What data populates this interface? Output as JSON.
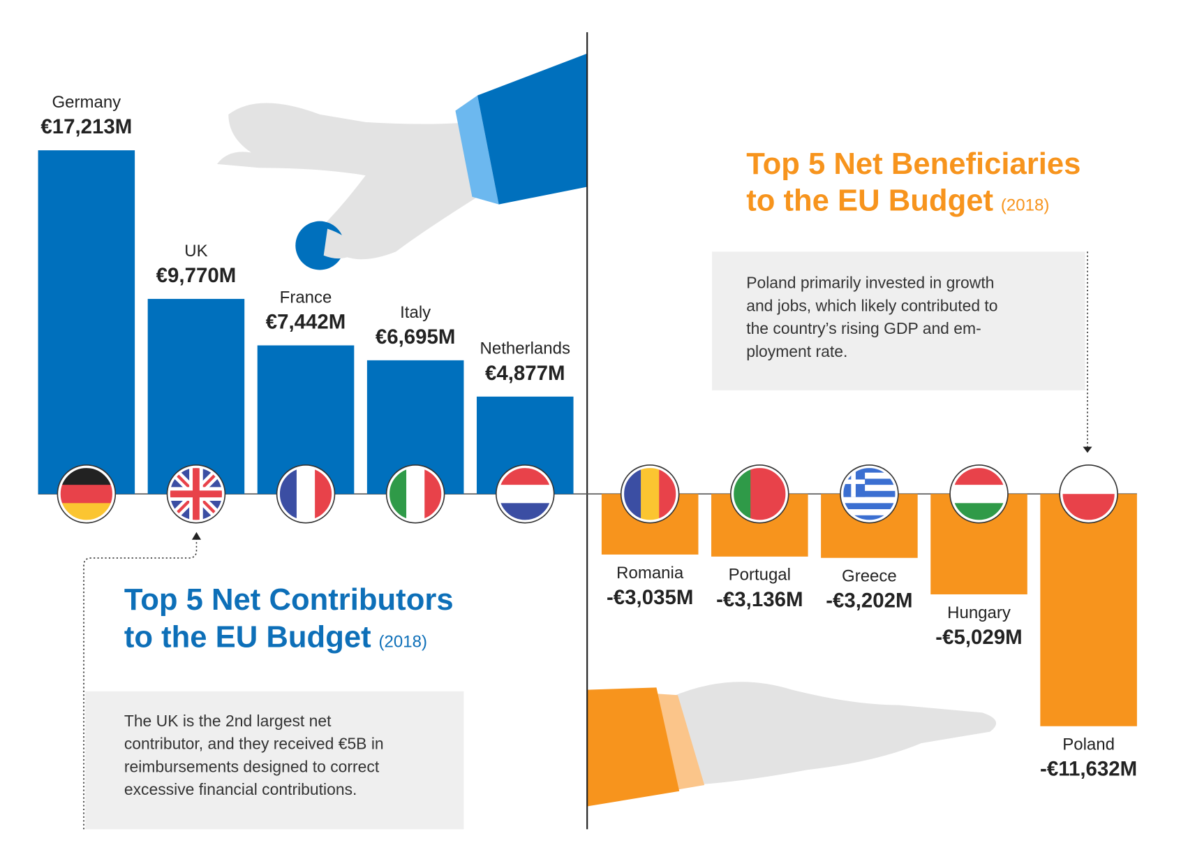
{
  "chart_data": [
    {
      "type": "bar",
      "title": [
        "Top 5 Net Contributors",
        "to the EU Budget"
      ],
      "subtitle": "(2018)",
      "note": [
        "The UK is the 2nd largest net",
        "contributor, and they received €5B in",
        "reimbursements designed to correct",
        "excessive financial contributions."
      ],
      "categories": [
        "Germany",
        "UK",
        "France",
        "Italy",
        "Netherlands"
      ],
      "values": [
        17213,
        9770,
        7442,
        6695,
        4877
      ],
      "value_labels": [
        "€17,213M",
        "€9,770M",
        "€7,442M",
        "€6,695M",
        "€4,877M"
      ],
      "color": "#0070bd"
    },
    {
      "type": "bar",
      "title": [
        "Top 5 Net Beneficiaries",
        "to the EU Budget"
      ],
      "subtitle": "(2018)",
      "note": [
        "Poland primarily invested in growth",
        "and jobs, which likely contributed to",
        "the country’s rising GDP and em-",
        "ployment rate."
      ],
      "categories": [
        "Romania",
        "Portugal",
        "Greece",
        "Hungary",
        "Poland"
      ],
      "values": [
        -3035,
        -3136,
        -3202,
        -5029,
        -11632
      ],
      "value_labels": [
        "-€3,035M",
        "-€3,136M",
        "-€3,202M",
        "-€5,029M",
        "-€11,632M"
      ],
      "color": "#f7941d"
    }
  ]
}
